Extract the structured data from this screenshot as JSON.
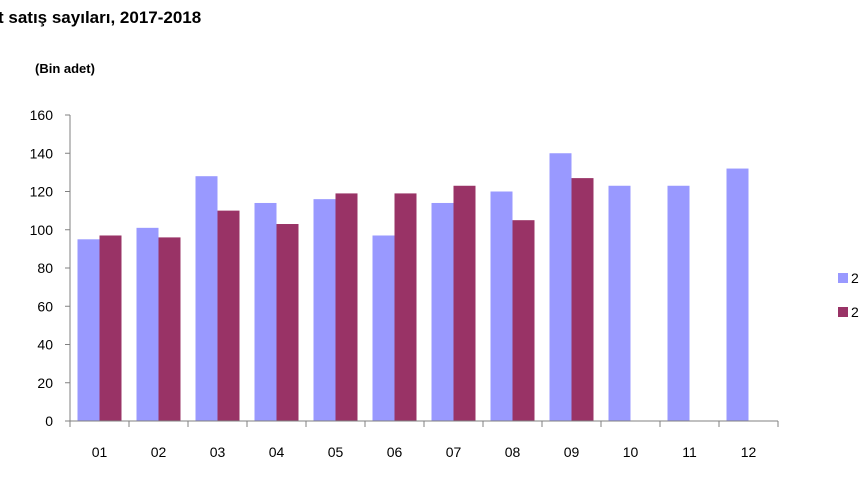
{
  "title": "t satış sayıları, 2017-2018",
  "unit_label": "(Bin adet)",
  "colors": {
    "series_2017": "#9999ff",
    "series_2018": "#993366",
    "axis": "#808080"
  },
  "chart_data": {
    "type": "bar",
    "title": "t satış sayıları, 2017-2018",
    "ylabel": "(Bin adet)",
    "xlabel": "",
    "ylim": [
      0,
      160
    ],
    "yticks": [
      0,
      20,
      40,
      60,
      80,
      100,
      120,
      140,
      160
    ],
    "grid": false,
    "legend_position": "right",
    "categories": [
      "01",
      "02",
      "03",
      "04",
      "05",
      "06",
      "07",
      "08",
      "09",
      "10",
      "11",
      "12"
    ],
    "series": [
      {
        "legend_label": "2",
        "color": "#9999ff",
        "values": [
          95,
          101,
          128,
          114,
          116,
          97,
          114,
          120,
          140,
          123,
          123,
          132
        ]
      },
      {
        "legend_label": "2",
        "color": "#993366",
        "values": [
          97,
          96,
          110,
          103,
          119,
          119,
          123,
          105,
          127,
          null,
          null,
          null
        ]
      }
    ]
  }
}
